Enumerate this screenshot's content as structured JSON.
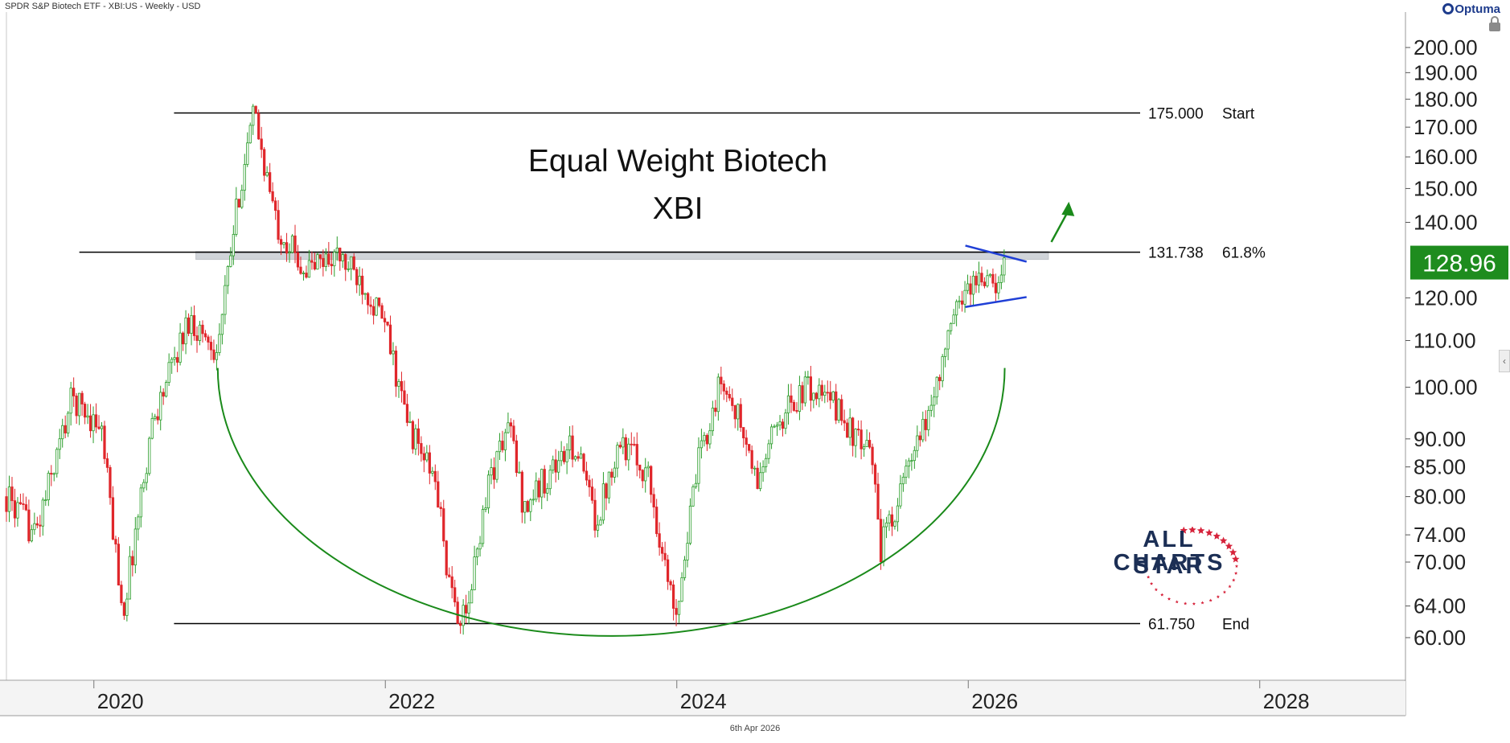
{
  "header": {
    "title": "SPDR S&P Biotech ETF - XBI:US - Weekly - USD"
  },
  "footer": {
    "date": "6th Apr 2026"
  },
  "brand": {
    "name": "Optuma",
    "logo_line1": "ALL STAR",
    "logo_line2": "CHARTS"
  },
  "icons": {
    "lock": "lock-icon",
    "collapse": "chevron-left-icon"
  },
  "colors": {
    "up": "#2a9d2a",
    "down": "#e0262b",
    "curve": "#1a8a1a",
    "trend": "#1f3fd6",
    "zone": "#d0d4d9",
    "price_tag": "#1e8c1e",
    "level": "#000000"
  },
  "chart_data": {
    "type": "candlestick",
    "title": "Equal Weight Biotech",
    "subtitle": "XBI",
    "y_scale": "log",
    "ylim": [
      55,
      215
    ],
    "xlim": [
      2019.4,
      2029.0
    ],
    "y_ticks": [
      "200.00",
      "190.00",
      "180.00",
      "170.00",
      "160.00",
      "150.00",
      "140.00",
      "120.00",
      "110.00",
      "100.00",
      "90.00",
      "85.00",
      "80.00",
      "74.00",
      "70.00",
      "64.00",
      "60.00"
    ],
    "x_ticks": [
      "2020",
      "2022",
      "2024",
      "2026",
      "2028"
    ],
    "last_price": "128.96",
    "levels": [
      {
        "value": 175.0,
        "label": "175.000",
        "name": "Start"
      },
      {
        "value": 131.738,
        "label": "131.738",
        "name": "61.8%"
      },
      {
        "value": 61.75,
        "label": "61.750",
        "name": "End"
      }
    ],
    "resistance_zone": {
      "low": 129.8,
      "high": 131.9,
      "x_start": 2020.7,
      "x_end": 2026.55
    },
    "triangle": {
      "upper": [
        [
          2025.98,
          133.5
        ],
        [
          2026.4,
          129.2
        ]
      ],
      "lower": [
        [
          2025.98,
          117.8
        ],
        [
          2026.4,
          120.2
        ]
      ]
    },
    "breakout_arrow": [
      [
        2026.57,
        134.5
      ],
      [
        2026.69,
        146.0
      ]
    ],
    "arc": {
      "x_start": 2020.85,
      "x_end": 2026.25,
      "y_top": 104.0,
      "y_bottom": 60.2
    },
    "price_path": [
      [
        2019.4,
        80
      ],
      [
        2019.6,
        74
      ],
      [
        2019.85,
        98
      ],
      [
        2020.05,
        92
      ],
      [
        2020.2,
        63
      ],
      [
        2020.4,
        93
      ],
      [
        2020.65,
        115
      ],
      [
        2020.85,
        108
      ],
      [
        2021.0,
        150
      ],
      [
        2021.1,
        175
      ],
      [
        2021.25,
        140
      ],
      [
        2021.45,
        127
      ],
      [
        2021.65,
        131
      ],
      [
        2021.85,
        124
      ],
      [
        2022.0,
        113
      ],
      [
        2022.15,
        93
      ],
      [
        2022.35,
        82
      ],
      [
        2022.45,
        65
      ],
      [
        2022.55,
        61.75
      ],
      [
        2022.7,
        82
      ],
      [
        2022.85,
        93
      ],
      [
        2022.95,
        78
      ],
      [
        2023.15,
        85
      ],
      [
        2023.3,
        89
      ],
      [
        2023.45,
        76
      ],
      [
        2023.6,
        90
      ],
      [
        2023.8,
        84
      ],
      [
        2023.95,
        66
      ],
      [
        2024.0,
        64
      ],
      [
        2024.15,
        86
      ],
      [
        2024.3,
        101
      ],
      [
        2024.4,
        96
      ],
      [
        2024.55,
        82
      ],
      [
        2024.7,
        94
      ],
      [
        2024.9,
        100
      ],
      [
        2025.1,
        96
      ],
      [
        2025.25,
        89
      ],
      [
        2025.35,
        86
      ],
      [
        2025.4,
        72
      ],
      [
        2025.55,
        82
      ],
      [
        2025.7,
        92
      ],
      [
        2025.8,
        103
      ],
      [
        2025.95,
        121
      ],
      [
        2026.1,
        126
      ],
      [
        2026.2,
        121
      ],
      [
        2026.25,
        129
      ]
    ]
  }
}
